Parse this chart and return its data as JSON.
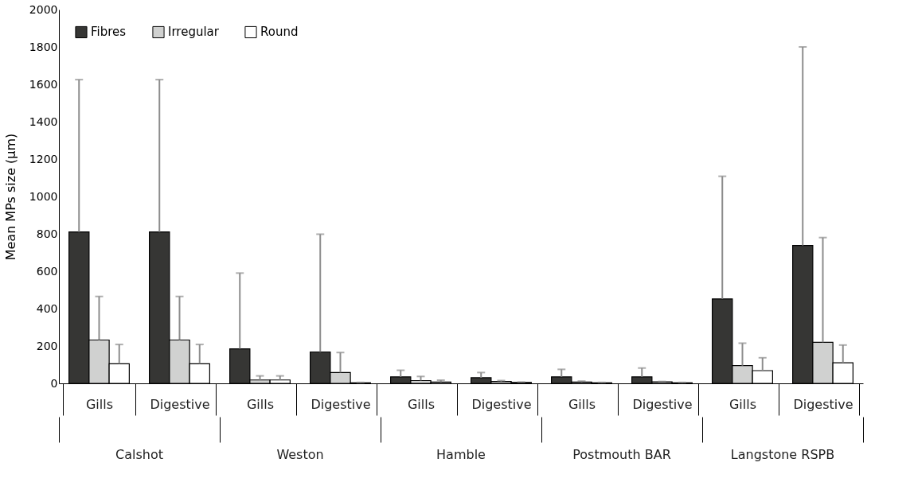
{
  "chart_data": {
    "type": "bar",
    "ylabel": "Mean MPs size (µm)",
    "categories": [
      "Gills",
      "Digestive",
      "Gills",
      "Digestive",
      "Gills",
      "Digestive",
      "Gills",
      "Digestive",
      "Gills",
      "Digestive"
    ],
    "series": [
      {
        "name": "Fibres",
        "color": "#363634",
        "values": [
          810,
          810,
          185,
          168,
          35,
          30,
          35,
          35,
          452,
          738
        ],
        "errors": [
          [
            810,
            1625
          ],
          [
            810,
            1625
          ],
          [
            185,
            590
          ],
          [
            168,
            798
          ],
          [
            35,
            70
          ],
          [
            30,
            58
          ],
          [
            35,
            75
          ],
          [
            35,
            82
          ],
          [
            452,
            1108
          ],
          [
            738,
            1800
          ]
        ]
      },
      {
        "name": "Irregular",
        "color": "#d0d1d0",
        "values": [
          232,
          232,
          18,
          58,
          15,
          10,
          7,
          8,
          95,
          220
        ],
        "errors": [
          [
            232,
            465
          ],
          [
            232,
            465
          ],
          [
            18,
            40
          ],
          [
            58,
            165
          ],
          [
            15,
            37
          ],
          [
            10,
            15
          ],
          [
            7,
            12
          ],
          [
            8,
            10
          ],
          [
            95,
            215
          ],
          [
            220,
            780
          ]
        ]
      },
      {
        "name": "Round",
        "color": "#ffffff",
        "values": [
          105,
          105,
          18,
          3,
          7,
          5,
          3,
          3,
          68,
          110
        ],
        "errors": [
          [
            105,
            208
          ],
          [
            105,
            208
          ],
          [
            18,
            40
          ],
          [
            3,
            5
          ],
          [
            7,
            17
          ],
          [
            5,
            7
          ],
          [
            3,
            5
          ],
          [
            3,
            5
          ],
          [
            68,
            137
          ],
          [
            110,
            205
          ]
        ]
      }
    ],
    "ylim": [
      0,
      2000
    ],
    "yticks": [
      0,
      200,
      400,
      600,
      800,
      1000,
      1200,
      1400,
      1600,
      1800,
      2000
    ],
    "legend": "top left",
    "annotations": [
      "Calshot",
      "Weston",
      "Hamble",
      "Postmouth BAR",
      "Langstone RSPB"
    ]
  }
}
